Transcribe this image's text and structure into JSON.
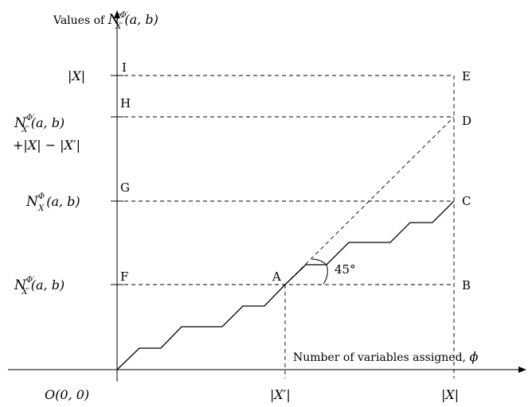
{
  "diagram": {
    "y_axis_title": {
      "prefix": "Values of ",
      "N": "N",
      "sup": "Φ′",
      "sub": "X′",
      "args": "(a, b)"
    },
    "x_axis_title": {
      "text": "Number of variables assigned, ",
      "phi": "ϕ"
    },
    "x_ticks": [
      {
        "id": "origin",
        "text": "O(0, 0)"
      },
      {
        "id": "x-prime",
        "text": "|X′|"
      },
      {
        "id": "x",
        "text": "|X|"
      }
    ],
    "y_ticks": {
      "abs_x": "|X|",
      "h_line1": {
        "N": "N",
        "sup": "Φ′",
        "sub": "X′",
        "args": "(a, b)"
      },
      "h_line2": "+|X| − |X′|",
      "g": {
        "N": "N",
        "sup": "Φ",
        "sub": "X",
        "args": "(a, b)"
      },
      "f": {
        "N": "N",
        "sup": "Φ′",
        "sub": "X′",
        "args": "(a, b)"
      }
    },
    "point_labels": [
      "I",
      "H",
      "G",
      "F",
      "E",
      "D",
      "C",
      "B",
      "A"
    ],
    "angle_label": "45°",
    "colors": {
      "ink": "#000000",
      "background": "#ffffff"
    }
  }
}
